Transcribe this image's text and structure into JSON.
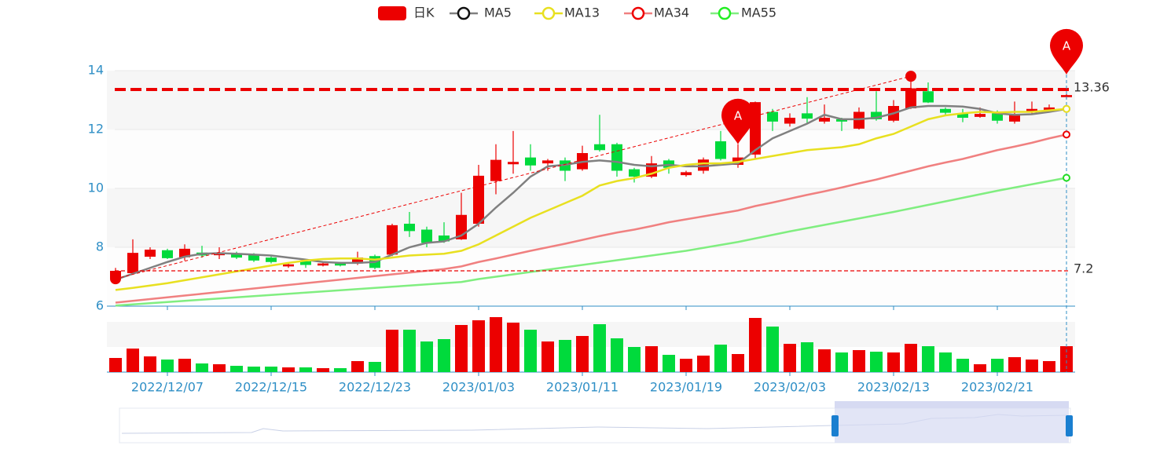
{
  "chart_data": {
    "type": "candlestick",
    "legend_position": "top",
    "categories": [
      null,
      null,
      null,
      "2022/12/07",
      null,
      null,
      null,
      null,
      null,
      "2022/12/15",
      null,
      null,
      null,
      null,
      null,
      "2022/12/23",
      null,
      null,
      null,
      null,
      null,
      "2023/01/03",
      null,
      null,
      null,
      null,
      null,
      "2023/01/11",
      null,
      null,
      null,
      null,
      null,
      "2023/01/19",
      null,
      null,
      null,
      null,
      null,
      "2023/02/03",
      null,
      null,
      null,
      null,
      null,
      "2023/02/13",
      null,
      null,
      null,
      null,
      null,
      "2023/02/21",
      null,
      null,
      null,
      null
    ],
    "ylim": [
      6,
      14
    ],
    "yticks": [
      6,
      8,
      10,
      12,
      14
    ],
    "grid": true,
    "up_color": "#ec0000",
    "down_color": "#00da3c",
    "series": [
      {
        "name": "日K",
        "type": "candlestick",
        "open": [
          6.95,
          7.12,
          7.68,
          7.9,
          7.66,
          7.82,
          7.73,
          7.8,
          7.75,
          7.65,
          7.35,
          7.52,
          7.38,
          7.45,
          7.45,
          7.7,
          7.75,
          8.8,
          8.6,
          8.4,
          8.27,
          8.8,
          10.25,
          10.82,
          11.05,
          10.85,
          10.95,
          10.65,
          11.5,
          11.5,
          10.65,
          10.4,
          10.95,
          10.45,
          10.6,
          11.6,
          10.8,
          11.15,
          12.6,
          12.2,
          12.55,
          12.27,
          12.35,
          12.03,
          12.6,
          12.3,
          12.72,
          13.3,
          12.7,
          12.55,
          12.43,
          12.55,
          12.27,
          12.58,
          12.67,
          13.1
        ],
        "close": [
          7.2,
          7.81,
          7.92,
          7.63,
          7.95,
          7.72,
          7.8,
          7.65,
          7.55,
          7.5,
          7.42,
          7.4,
          7.45,
          7.38,
          7.65,
          7.3,
          8.75,
          8.55,
          8.15,
          8.2,
          9.1,
          10.43,
          10.97,
          10.9,
          10.78,
          10.95,
          10.6,
          11.2,
          11.3,
          10.6,
          10.4,
          10.85,
          10.7,
          10.55,
          10.98,
          11.0,
          11.05,
          12.93,
          12.27,
          12.4,
          12.37,
          12.4,
          12.27,
          12.6,
          12.35,
          12.8,
          13.4,
          12.92,
          12.57,
          12.4,
          12.53,
          12.3,
          12.53,
          12.7,
          12.75,
          13.17
        ],
        "high": [
          7.3,
          8.27,
          8.0,
          7.95,
          8.1,
          8.05,
          8.0,
          7.85,
          7.8,
          7.7,
          7.45,
          7.58,
          7.5,
          7.5,
          7.85,
          7.75,
          8.8,
          9.2,
          8.7,
          8.85,
          9.85,
          10.8,
          11.5,
          11.95,
          11.5,
          11.0,
          11.05,
          11.45,
          12.5,
          11.55,
          10.7,
          11.1,
          11.0,
          10.6,
          11.05,
          11.95,
          11.5,
          12.95,
          12.7,
          12.55,
          13.1,
          12.85,
          12.4,
          12.75,
          13.3,
          13.0,
          13.81,
          13.6,
          12.75,
          12.7,
          12.75,
          12.65,
          12.95,
          12.95,
          12.85,
          13.2
        ],
        "low": [
          6.93,
          7.1,
          7.6,
          7.6,
          7.55,
          7.65,
          7.6,
          7.6,
          7.5,
          7.45,
          7.3,
          7.3,
          7.35,
          7.35,
          7.4,
          7.25,
          7.7,
          8.35,
          8.0,
          8.15,
          8.25,
          8.7,
          9.8,
          10.5,
          10.6,
          10.6,
          10.25,
          10.6,
          11.25,
          10.4,
          10.2,
          10.35,
          10.5,
          10.4,
          10.5,
          10.95,
          10.7,
          11.0,
          11.95,
          12.1,
          12.2,
          12.2,
          11.95,
          12.0,
          12.3,
          12.25,
          12.7,
          12.9,
          12.5,
          12.25,
          12.4,
          12.2,
          12.2,
          12.5,
          12.6,
          13.05
        ]
      },
      {
        "name": "MA5",
        "type": "line",
        "color": "#808080",
        "values": [
          6.9,
          7.1,
          7.3,
          7.5,
          7.68,
          7.78,
          7.8,
          7.78,
          7.75,
          7.72,
          7.65,
          7.58,
          7.5,
          7.47,
          7.47,
          7.5,
          7.75,
          8.0,
          8.15,
          8.2,
          8.4,
          8.8,
          9.35,
          9.85,
          10.4,
          10.75,
          10.8,
          10.9,
          10.95,
          10.9,
          10.8,
          10.75,
          10.8,
          10.75,
          10.75,
          10.8,
          10.85,
          11.3,
          11.7,
          11.95,
          12.2,
          12.5,
          12.35,
          12.35,
          12.4,
          12.55,
          12.75,
          12.8,
          12.8,
          12.78,
          12.7,
          12.55,
          12.5,
          12.52,
          12.6,
          12.7
        ]
      },
      {
        "name": "MA13",
        "type": "line",
        "color": "#e8e020",
        "values": [
          6.55,
          6.62,
          6.7,
          6.78,
          6.88,
          6.98,
          7.08,
          7.18,
          7.28,
          7.38,
          7.47,
          7.55,
          7.6,
          7.62,
          7.62,
          7.58,
          7.65,
          7.72,
          7.75,
          7.78,
          7.88,
          8.1,
          8.4,
          8.7,
          9.0,
          9.25,
          9.5,
          9.75,
          10.1,
          10.25,
          10.35,
          10.5,
          10.7,
          10.8,
          10.85,
          10.85,
          10.9,
          11.0,
          11.1,
          11.2,
          11.3,
          11.35,
          11.4,
          11.5,
          11.7,
          11.85,
          12.1,
          12.35,
          12.48,
          12.55,
          12.6,
          12.58,
          12.6,
          12.6,
          12.65,
          12.7
        ]
      },
      {
        "name": "MA34",
        "type": "line",
        "color": "#f08080",
        "values": [
          6.12,
          6.18,
          6.24,
          6.3,
          6.36,
          6.42,
          6.48,
          6.54,
          6.6,
          6.66,
          6.72,
          6.78,
          6.84,
          6.9,
          6.96,
          7.02,
          7.08,
          7.14,
          7.2,
          7.26,
          7.35,
          7.5,
          7.62,
          7.75,
          7.88,
          8.0,
          8.12,
          8.25,
          8.38,
          8.5,
          8.6,
          8.72,
          8.85,
          8.95,
          9.05,
          9.15,
          9.25,
          9.4,
          9.52,
          9.65,
          9.78,
          9.9,
          10.03,
          10.17,
          10.3,
          10.45,
          10.6,
          10.75,
          10.88,
          11.0,
          11.15,
          11.3,
          11.42,
          11.55,
          11.7,
          11.83
        ]
      },
      {
        "name": "MA55",
        "type": "line",
        "color": "#80ee80",
        "values": [
          6.02,
          6.06,
          6.1,
          6.14,
          6.18,
          6.22,
          6.26,
          6.3,
          6.34,
          6.38,
          6.42,
          6.46,
          6.5,
          6.54,
          6.58,
          6.62,
          6.66,
          6.7,
          6.74,
          6.78,
          6.82,
          6.92,
          7.0,
          7.08,
          7.16,
          7.24,
          7.32,
          7.4,
          7.48,
          7.56,
          7.64,
          7.72,
          7.8,
          7.88,
          7.98,
          8.08,
          8.18,
          8.3,
          8.42,
          8.54,
          8.65,
          8.76,
          8.87,
          8.98,
          9.09,
          9.2,
          9.32,
          9.44,
          9.56,
          9.68,
          9.8,
          9.92,
          10.03,
          10.14,
          10.25,
          10.36
        ]
      }
    ],
    "volume": {
      "ylim": [
        0,
        64
      ],
      "values": [
        18,
        30,
        20,
        16,
        17,
        11,
        10,
        8,
        7,
        7,
        6,
        6,
        5,
        5,
        14,
        13,
        54,
        54,
        39,
        42,
        60,
        66,
        70,
        63,
        54,
        39,
        41,
        46,
        61,
        43,
        32,
        33,
        22,
        17,
        21,
        35,
        23,
        69,
        58,
        36,
        38,
        29,
        25,
        28,
        26,
        25,
        36,
        33,
        25,
        17,
        10,
        17,
        19,
        16,
        14,
        33
      ]
    },
    "mark_lines": [
      {
        "value": 13.36,
        "style": "bold"
      },
      {
        "value": 7.2,
        "style": "thin"
      }
    ],
    "mark_points": [
      {
        "label": "A",
        "x": 36,
        "value": 11.5
      },
      {
        "label": "A",
        "x": 55,
        "value": 13.87
      }
    ]
  }
}
